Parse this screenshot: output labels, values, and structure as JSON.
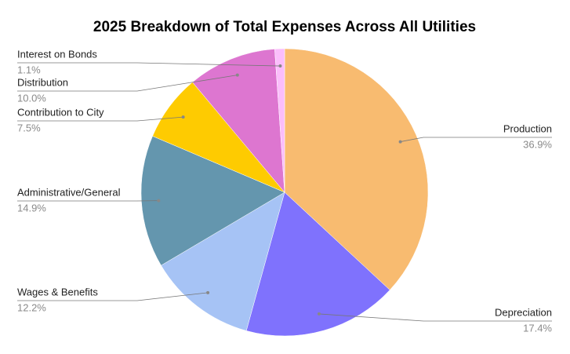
{
  "chart_data": {
    "type": "pie",
    "title": "2025 Breakdown of Total Expenses Across All Utilities",
    "categories": [
      "Production",
      "Depreciation",
      "Wages & Benefits",
      "Administrative/General",
      "Contribution to City",
      "Distribution",
      "Interest on Bonds"
    ],
    "values": [
      36.9,
      17.4,
      12.2,
      14.9,
      7.5,
      10.0,
      1.1
    ],
    "value_labels": [
      "36.9%",
      "17.4%",
      "12.2%",
      "14.9%",
      "7.5%",
      "10.0%",
      "1.1%"
    ],
    "colors": [
      "#f8bb70",
      "#7f72fd",
      "#a6c3f5",
      "#6496ae",
      "#fecb01",
      "#dd76d0",
      "#fbbdfb"
    ]
  }
}
